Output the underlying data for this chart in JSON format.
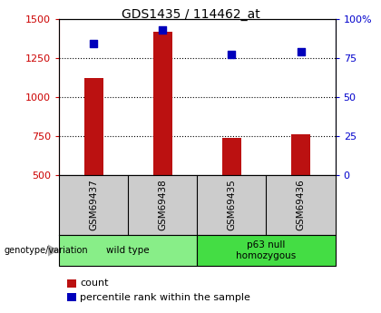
{
  "title": "GDS1435 / 114462_at",
  "samples": [
    "GSM69437",
    "GSM69438",
    "GSM69435",
    "GSM69436"
  ],
  "counts": [
    1120,
    1420,
    740,
    760
  ],
  "percentile_ranks": [
    84,
    93,
    77,
    79
  ],
  "ylim_left": [
    500,
    1500
  ],
  "ylim_right": [
    0,
    100
  ],
  "yticks_left": [
    500,
    750,
    1000,
    1250,
    1500
  ],
  "yticks_right": [
    0,
    25,
    50,
    75,
    100
  ],
  "yticklabels_right": [
    "0",
    "25",
    "50",
    "75",
    "100%"
  ],
  "groups": [
    {
      "label": "wild type",
      "indices": [
        0,
        1
      ],
      "color": "#88ee88"
    },
    {
      "label": "p63 null\nhomozygous",
      "indices": [
        2,
        3
      ],
      "color": "#44dd44"
    }
  ],
  "bar_color": "#bb1111",
  "dot_color": "#0000bb",
  "bg_color": "#ffffff",
  "plot_bg": "#ffffff",
  "left_tick_color": "#cc0000",
  "right_tick_color": "#0000cc",
  "sample_box_color": "#cccccc",
  "genotype_label": "genotype/variation",
  "legend_count_label": "count",
  "legend_pct_label": "percentile rank within the sample",
  "grid_ticks": [
    750,
    1000,
    1250
  ]
}
